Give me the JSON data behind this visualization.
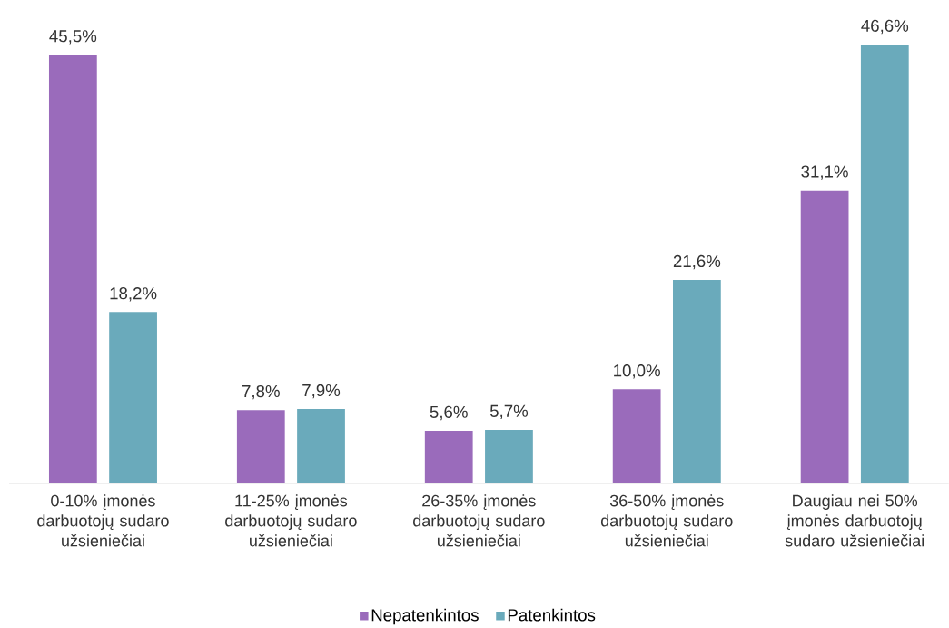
{
  "chart_data": {
    "type": "bar",
    "categories": [
      "0-10% įmonės darbuotojų sudaro užsieniečiai",
      "11-25% įmonės darbuotojų sudaro užsieniečiai",
      "26-35% įmonės darbuotojų sudaro užsieniečiai",
      "36-50% įmonės darbuotojų sudaro užsieniečiai",
      "Daugiau nei 50% įmonės darbuotojų sudaro užsieniečiai"
    ],
    "series": [
      {
        "name": "Nepatenkintos",
        "color": "#9a6bbb",
        "values": [
          45.5,
          7.8,
          5.6,
          10.0,
          31.1
        ],
        "value_labels": [
          "45,5%",
          "7,8%",
          "5,6%",
          "10,0%",
          "31,1%"
        ]
      },
      {
        "name": "Patenkintos",
        "color": "#6aaabb",
        "values": [
          18.2,
          7.9,
          5.7,
          21.6,
          46.6
        ],
        "value_labels": [
          "18,2%",
          "7,9%",
          "5,7%",
          "21,6%",
          "46,6%"
        ]
      }
    ],
    "legend": "bottom"
  }
}
